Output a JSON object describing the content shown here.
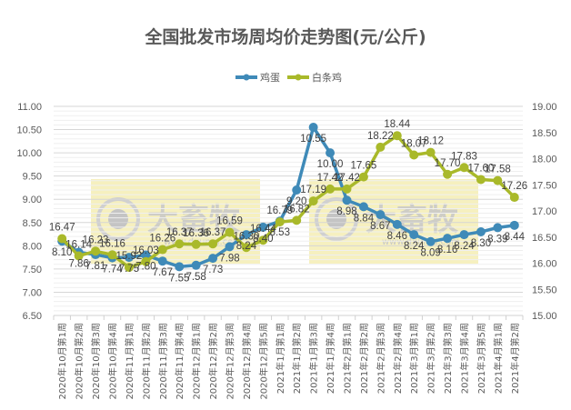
{
  "chart_data": {
    "type": "line",
    "title": "全国批发市场周均价走势图(元/公斤)",
    "xlabel": "",
    "ylabel": "",
    "legend_position": "top",
    "grid": true,
    "categories": [
      "2020年10月第1周",
      "2020年10月第2周",
      "2020年10月第3周",
      "2020年10月第4周",
      "2020年11月第1周",
      "2020年11月第2周",
      "2020年11月第3周",
      "2020年11月第4周",
      "2020年12月第1周",
      "2020年12月第2周",
      "2020年12月第3周",
      "2020年12月第4周",
      "2020年12月第5周",
      "2021年1月第1周",
      "2021年1月第2周",
      "2021年1月第3周",
      "2021年1月第4周",
      "2021年2月第1周",
      "2021年2月第2周",
      "2021年2月第3周",
      "2021年2月第4周",
      "2021年3月第1周",
      "2021年3月第2周",
      "2021年3月第3周",
      "2021年3月第4周",
      "2021年3月第5周",
      "2021年4月第1周",
      "2021年4月第2周"
    ],
    "series": [
      {
        "name": "鸡蛋",
        "axis": "left",
        "color": "#3f8ab8",
        "values": [
          8.1,
          7.86,
          7.81,
          7.74,
          7.75,
          7.8,
          7.67,
          7.55,
          7.58,
          7.73,
          7.98,
          8.24,
          8.4,
          8.53,
          9.2,
          10.55,
          10.0,
          8.98,
          8.84,
          8.67,
          8.46,
          8.24,
          8.09,
          8.16,
          8.24,
          8.3,
          8.39,
          8.44
        ]
      },
      {
        "name": "白条鸡",
        "axis": "right",
        "color": "#a9b92a",
        "values": [
          16.47,
          16.14,
          16.23,
          16.16,
          15.92,
          16.03,
          16.26,
          16.37,
          16.36,
          16.37,
          16.59,
          16.3,
          16.44,
          16.79,
          16.82,
          17.19,
          17.42,
          17.42,
          17.65,
          18.22,
          18.44,
          18.07,
          18.12,
          17.7,
          17.83,
          17.6,
          17.58,
          17.26
        ]
      }
    ],
    "y_left": {
      "ylim": [
        6.5,
        11.0
      ],
      "ticks": [
        "6.50",
        "7.00",
        "7.50",
        "8.00",
        "8.50",
        "9.00",
        "9.50",
        "10.00",
        "10.50",
        "11.00"
      ]
    },
    "y_right": {
      "ylim": [
        15.0,
        19.0
      ],
      "ticks": [
        "15.00",
        "15.50",
        "16.00",
        "16.50",
        "17.00",
        "17.50",
        "18.00",
        "18.50",
        "19.00"
      ]
    }
  },
  "legend": {
    "items": [
      {
        "label": "鸡蛋",
        "color": "#3f8ab8"
      },
      {
        "label": "白条鸡",
        "color": "#a9b92a"
      }
    ]
  },
  "watermark": {
    "text": "大畜牧",
    "url": "www.dxumu.com",
    "bg_color": "#f5eeb8"
  }
}
